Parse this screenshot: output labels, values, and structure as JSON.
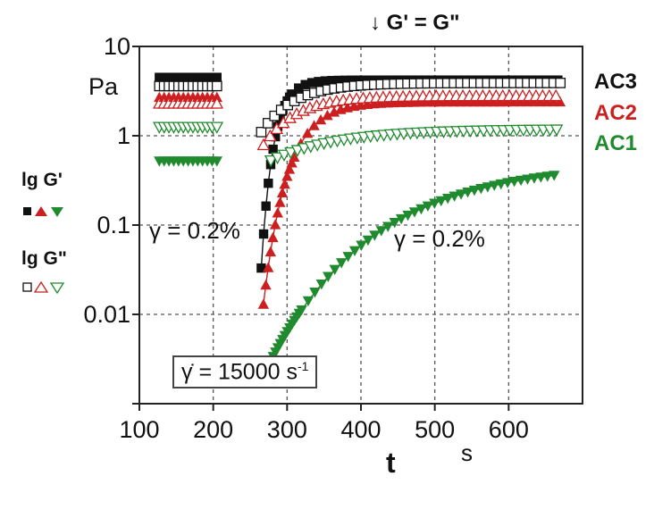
{
  "header": {
    "annotation": "↓ G' = G\""
  },
  "chart_data": {
    "type": "scatter",
    "x_axis": {
      "label": "t",
      "unit": "s",
      "ticks": [
        "100",
        "200",
        "300",
        "400",
        "500",
        "600"
      ],
      "range": [
        100,
        700
      ]
    },
    "y_axis": {
      "scale": "log",
      "unit": "Pa",
      "ticks": [
        "10",
        "1",
        "0.1",
        "0.01"
      ],
      "range": [
        0.001,
        10
      ]
    },
    "grid": true,
    "legend": {
      "g_prime_title": "lg G'",
      "g_double_prime_title": "lg G\"",
      "placement": "left"
    },
    "annotations": {
      "gamma_left": "γ = 0.2%",
      "gamma_right": "γ = 0.2%",
      "shear_rate_prefix": "γ̇ = 15000 s",
      "shear_rate_exp": "-1"
    },
    "series": [
      {
        "name": "AC3",
        "color": "#111111",
        "marker": "square",
        "pre_interval": [
          127,
          207
        ],
        "pre_G1": 4.5,
        "pre_G2": 3.6,
        "low": 0.033,
        "plateau_G1": 4.2,
        "plateau_G2": 3.9,
        "t0": 265,
        "recovery_tau": 16,
        "recovery_end": 670
      },
      {
        "name": "AC2",
        "color": "#cc1f1f",
        "marker": "triangle-up",
        "pre_interval": [
          127,
          207
        ],
        "pre_G1": 2.7,
        "pre_G2": 2.3,
        "low": 0.013,
        "plateau_G1": 2.4,
        "plateau_G2": 2.8,
        "t0": 268,
        "recovery_tau": 32,
        "recovery_end": 670
      },
      {
        "name": "AC1",
        "color": "#1f8a2e",
        "marker": "triangle-down",
        "pre_interval": [
          127,
          207
        ],
        "pre_G1": 0.52,
        "pre_G2": 1.25,
        "low": 0.003,
        "plateau_G1": 0.5,
        "plateau_G2": 1.18,
        "t0": 278,
        "recovery_tau": 140,
        "recovery_end": 670
      }
    ]
  }
}
